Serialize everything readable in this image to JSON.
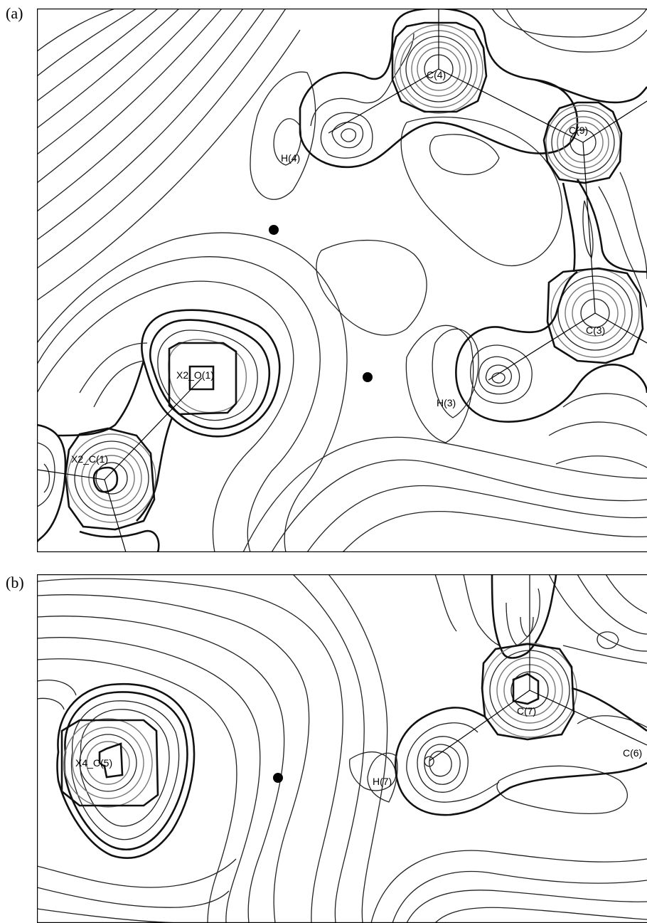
{
  "panels": [
    {
      "label": "(a)",
      "atoms": {
        "c4": "C(4)",
        "c9": "C(9)",
        "c3": "C(3)",
        "h4": "H(4)",
        "h3": "H(3)",
        "o1": "X2_O(1)",
        "c1": "X2_C(1)"
      },
      "critical_point_count": 2
    },
    {
      "label": "(b)",
      "atoms": {
        "c7": "C(7)",
        "c6": "C(6)",
        "h7": "H(7)",
        "c5": "X4_C(5)"
      },
      "critical_point_count": 1
    }
  ]
}
